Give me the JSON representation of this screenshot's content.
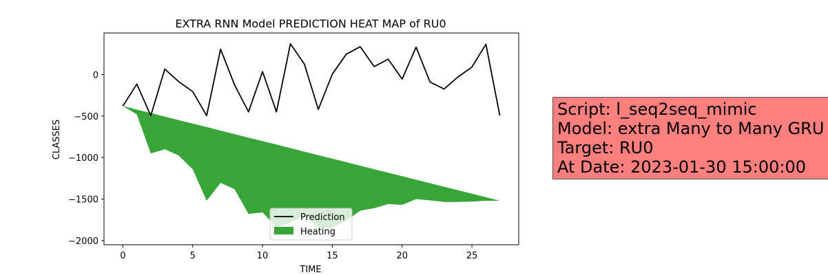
{
  "chart_data": {
    "type": "area",
    "title": "EXTRA RNN Model PREDICTION HEAT MAP of RU0",
    "xlabel": "TIME",
    "ylabel": "CLASSES",
    "xlim": [
      -1.35,
      28.35
    ],
    "ylim": [
      -2050,
      500
    ],
    "xticks": [
      0,
      5,
      10,
      15,
      20,
      25
    ],
    "yticks": [
      0,
      -500,
      -1000,
      -1500,
      -2000
    ],
    "legend_position": "lower center",
    "series": [
      {
        "name": "Prediction",
        "kind": "line",
        "color": "#000000",
        "x": [
          0,
          1,
          2,
          3,
          4,
          5,
          6,
          7,
          8,
          9,
          10,
          11,
          12,
          13,
          14,
          15,
          16,
          17,
          18,
          19,
          20,
          21,
          22,
          23,
          24,
          25,
          26,
          27
        ],
        "values": [
          -380,
          -115,
          -495,
          65,
          -85,
          -205,
          -495,
          305,
          -125,
          -450,
          35,
          -450,
          370,
          125,
          -420,
          5,
          245,
          335,
          95,
          185,
          -55,
          330,
          -90,
          -175,
          -30,
          90,
          365,
          -495
        ]
      },
      {
        "name": "Heating",
        "kind": "fill_between",
        "color": "#2ca02c",
        "x": [
          0,
          1,
          2,
          3,
          4,
          5,
          6,
          7,
          8,
          9,
          10,
          11,
          12,
          13,
          14,
          15,
          16,
          17,
          18,
          19,
          20,
          21,
          22,
          23,
          24,
          25,
          26,
          27
        ],
        "upper": [
          -380,
          -422,
          -464,
          -507,
          -549,
          -591,
          -633,
          -676,
          -718,
          -760,
          -802,
          -844,
          -887,
          -929,
          -971,
          -1013,
          -1056,
          -1098,
          -1140,
          -1182,
          -1224,
          -1267,
          -1309,
          -1351,
          -1393,
          -1436,
          -1478,
          -1520
        ],
        "lower": [
          -380,
          -480,
          -950,
          -900,
          -975,
          -1140,
          -1520,
          -1305,
          -1380,
          -1680,
          -1660,
          -1840,
          -1780,
          -1700,
          -1840,
          -1840,
          -1760,
          -1640,
          -1610,
          -1560,
          -1570,
          -1500,
          -1515,
          -1535,
          -1535,
          -1530,
          -1520,
          -1520
        ]
      }
    ]
  },
  "info_box": {
    "script": "Script: l_seq2seq_mimic",
    "model": "Model: extra Many to Many GRU",
    "target": "Target: RU0",
    "date": "At Date: 2023-01-30 15:00:00"
  }
}
